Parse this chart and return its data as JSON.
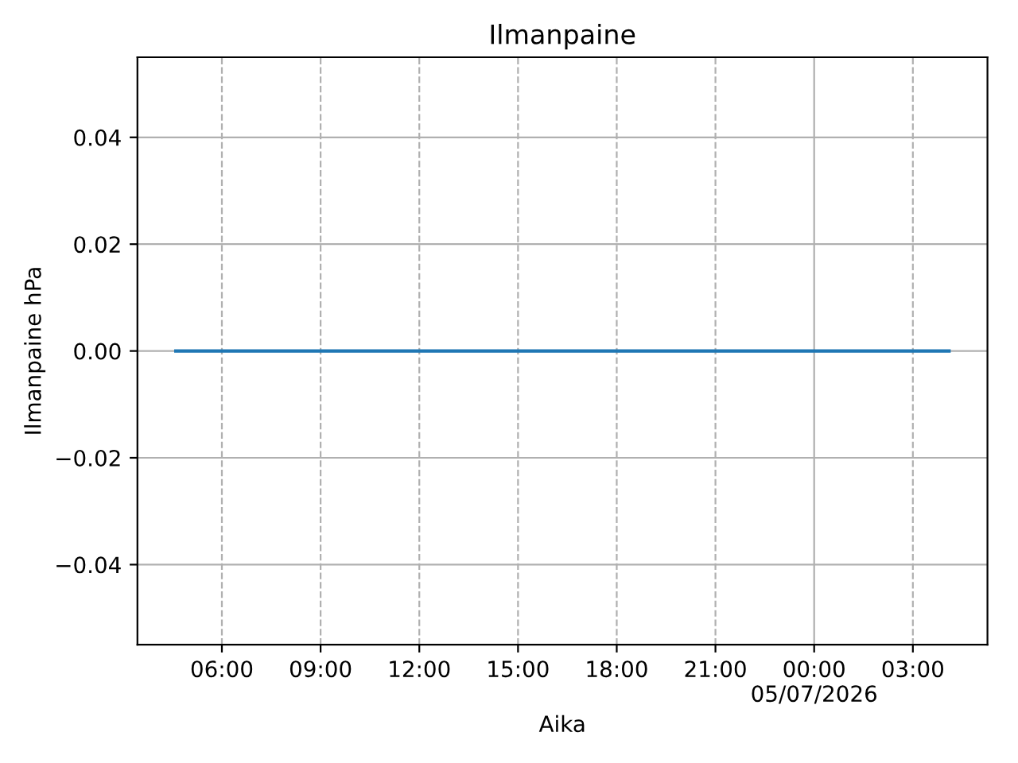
{
  "chart_data": {
    "type": "line",
    "title": "Ilmanpaine",
    "xlabel": "Aika",
    "ylabel": "Ilmanpaine hPa",
    "x": [
      "2026-07-04T04:36",
      "2026-07-05T04:06"
    ],
    "series": [
      {
        "color": "#1f77b4",
        "values": [
          0,
          0
        ]
      }
    ],
    "xlim": [
      "2026-07-04T03:26",
      "2026-07-05T05:16"
    ],
    "xticks": [
      {
        "value": "2026-07-04T06:00",
        "label": "06:00"
      },
      {
        "value": "2026-07-04T09:00",
        "label": "09:00"
      },
      {
        "value": "2026-07-04T12:00",
        "label": "12:00"
      },
      {
        "value": "2026-07-04T15:00",
        "label": "15:00"
      },
      {
        "value": "2026-07-04T18:00",
        "label": "18:00"
      },
      {
        "value": "2026-07-04T21:00",
        "label": "21:00"
      },
      {
        "value": "2026-07-05T00:00",
        "label": "00:00\n05/07/2026"
      },
      {
        "value": "2026-07-05T03:00",
        "label": "03:00"
      }
    ],
    "ylim": [
      -0.055,
      0.055
    ],
    "yticks": [
      {
        "value": -0.04,
        "label": "−0.04"
      },
      {
        "value": -0.02,
        "label": "−0.02"
      },
      {
        "value": 0,
        "label": "0.00"
      },
      {
        "value": 0.02,
        "label": "0.02"
      },
      {
        "value": 0.04,
        "label": "0.04"
      }
    ],
    "grid": true,
    "legend": false,
    "marker": "none",
    "line_style": "solid"
  }
}
